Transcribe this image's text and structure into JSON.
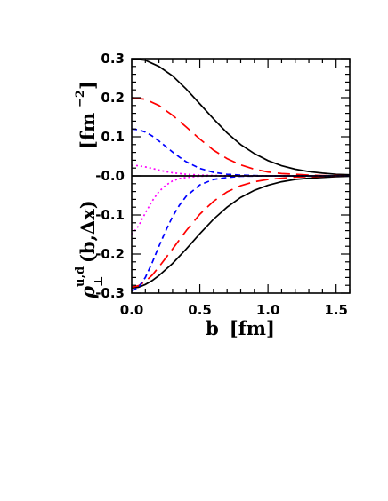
{
  "chart_data": {
    "type": "line",
    "title": "",
    "xlim": [
      0,
      1.6
    ],
    "ylim": [
      -0.3,
      0.3
    ],
    "x_ticks": [
      "0.0",
      "0.5",
      "1.0",
      "1.5"
    ],
    "y_ticks": [
      "0.3",
      "0.2",
      "0.1",
      "-0.0",
      "-0.1",
      "-0.2",
      "-0.3"
    ],
    "xlabel": {
      "base": "b",
      "unit": "[fm]"
    },
    "ylabel": {
      "rho": "ρ",
      "subscript": "⊥",
      "superscript": "u,d",
      "args": "(b,Δx)",
      "unit_open": "[fm",
      "unit_exp": "−2",
      "unit_close": "]"
    },
    "grid": false,
    "legend": "none",
    "series": [
      {
        "color": "#000000",
        "dash": "solid",
        "x": [
          0,
          0.1,
          0.2,
          0.3,
          0.4,
          0.5,
          0.6,
          0.7,
          0.8,
          0.9,
          1.0,
          1.1,
          1.2,
          1.3,
          1.4,
          1.5,
          1.6
        ],
        "y": [
          0.3,
          0.296,
          0.28,
          0.256,
          0.222,
          0.184,
          0.146,
          0.11,
          0.08,
          0.057,
          0.039,
          0.026,
          0.017,
          0.011,
          0.007,
          0.004,
          0.003
        ]
      },
      {
        "color": "#ff0000",
        "dash": "long",
        "x": [
          0,
          0.1,
          0.2,
          0.3,
          0.4,
          0.5,
          0.6,
          0.7,
          0.8,
          0.9,
          1.0,
          1.1,
          1.2,
          1.3,
          1.4,
          1.5,
          1.6
        ],
        "y": [
          0.2,
          0.196,
          0.18,
          0.155,
          0.125,
          0.094,
          0.066,
          0.044,
          0.028,
          0.017,
          0.01,
          0.006,
          0.004,
          0.002,
          0.001,
          0.001,
          0.0
        ]
      },
      {
        "color": "#0000ff",
        "dash": "short",
        "x": [
          0,
          0.05,
          0.1,
          0.15,
          0.2,
          0.25,
          0.3,
          0.35,
          0.4,
          0.5,
          0.6,
          0.7,
          0.8,
          0.9,
          1.0,
          1.2,
          1.6
        ],
        "y": [
          0.12,
          0.118,
          0.112,
          0.102,
          0.089,
          0.075,
          0.061,
          0.048,
          0.036,
          0.019,
          0.009,
          0.004,
          0.002,
          0.001,
          0.0,
          0.0,
          0.0
        ]
      },
      {
        "color": "#ff00ff",
        "dash": "dotted",
        "x": [
          0,
          0.05,
          0.1,
          0.15,
          0.2,
          0.25,
          0.3,
          0.4,
          0.5,
          0.6,
          0.8,
          1.0,
          1.6
        ],
        "y": [
          0.027,
          0.026,
          0.023,
          0.019,
          0.015,
          0.011,
          0.008,
          0.004,
          0.002,
          0.001,
          0.0,
          0.0,
          0.0
        ]
      },
      {
        "color": "#000000",
        "dash": "solid",
        "x": [
          0,
          0.05,
          0.1,
          0.15,
          0.2,
          0.3,
          0.4,
          0.5,
          0.6,
          0.7,
          0.8,
          0.9,
          1.0,
          1.1,
          1.2,
          1.3,
          1.4,
          1.5,
          1.6
        ],
        "y": [
          -0.287,
          -0.285,
          -0.278,
          -0.268,
          -0.255,
          -0.224,
          -0.187,
          -0.148,
          -0.111,
          -0.08,
          -0.055,
          -0.037,
          -0.024,
          -0.015,
          -0.009,
          -0.006,
          -0.004,
          -0.002,
          -0.001
        ]
      },
      {
        "color": "#ff0000",
        "dash": "long",
        "x": [
          0,
          0.05,
          0.1,
          0.15,
          0.2,
          0.3,
          0.4,
          0.5,
          0.6,
          0.7,
          0.8,
          0.9,
          1.0,
          1.2,
          1.4,
          1.6
        ],
        "y": [
          -0.285,
          -0.281,
          -0.27,
          -0.254,
          -0.233,
          -0.187,
          -0.14,
          -0.098,
          -0.065,
          -0.041,
          -0.025,
          -0.015,
          -0.009,
          -0.003,
          -0.001,
          0.0
        ]
      },
      {
        "color": "#0000ff",
        "dash": "short",
        "x": [
          0,
          0.05,
          0.1,
          0.15,
          0.2,
          0.25,
          0.3,
          0.35,
          0.4,
          0.5,
          0.6,
          0.7,
          0.8,
          1.0,
          1.6
        ],
        "y": [
          -0.295,
          -0.285,
          -0.26,
          -0.222,
          -0.18,
          -0.14,
          -0.104,
          -0.075,
          -0.052,
          -0.023,
          -0.009,
          -0.004,
          -0.001,
          0.0,
          0.0
        ]
      },
      {
        "color": "#ff00ff",
        "dash": "dotted",
        "x": [
          0,
          0.05,
          0.1,
          0.15,
          0.2,
          0.25,
          0.3,
          0.35,
          0.4,
          0.5,
          0.6,
          0.8,
          1.6
        ],
        "y": [
          -0.15,
          -0.128,
          -0.095,
          -0.064,
          -0.04,
          -0.024,
          -0.013,
          -0.007,
          -0.004,
          -0.001,
          0.0,
          0.0,
          0.0
        ]
      },
      {
        "color": "#000000",
        "dash": "solid",
        "x": [
          0,
          1.6
        ],
        "y": [
          0,
          0
        ]
      }
    ]
  }
}
